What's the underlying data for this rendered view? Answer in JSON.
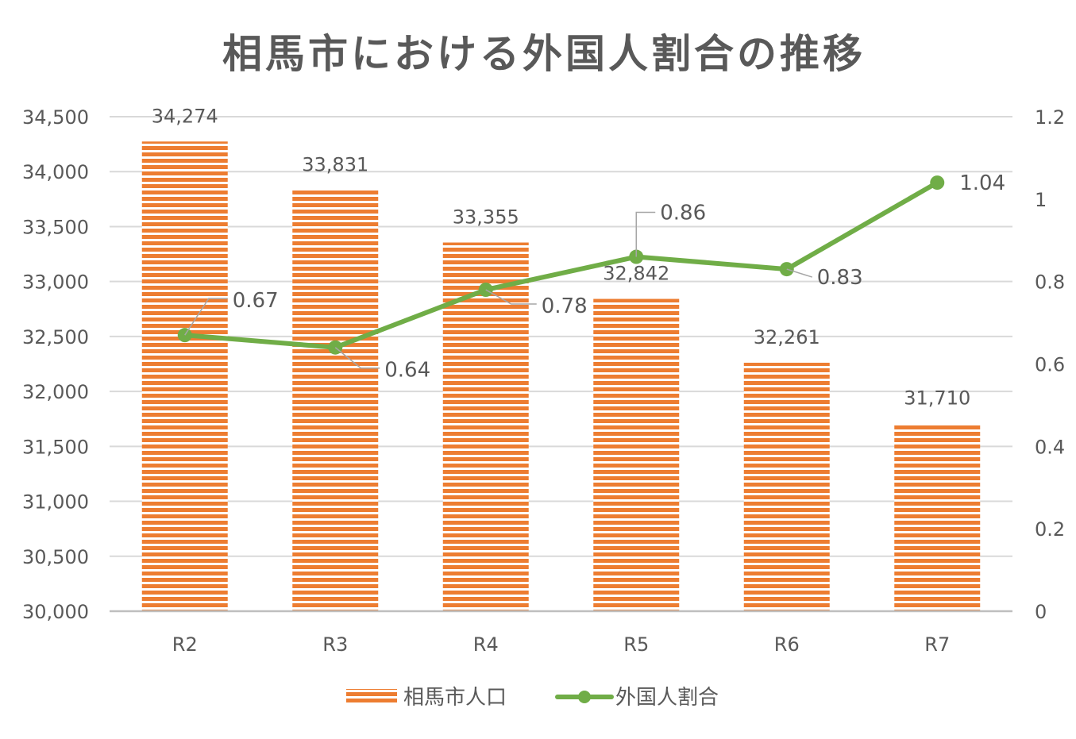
{
  "chart_data": {
    "type": "bar",
    "title": "相馬市における外国人割合の推移",
    "categories": [
      "R2",
      "R3",
      "R4",
      "R5",
      "R6",
      "R7"
    ],
    "series": [
      {
        "name": "相馬市人口",
        "type": "bar",
        "axis": "left",
        "values": [
          34274,
          33831,
          33355,
          32842,
          32261,
          31710
        ],
        "value_labels": [
          "34,274",
          "33,831",
          "33,355",
          "32,842",
          "32,261",
          "31,710"
        ],
        "color": "#ED7D31"
      },
      {
        "name": "外国人割合",
        "type": "line",
        "axis": "right",
        "values": [
          0.67,
          0.64,
          0.78,
          0.86,
          0.83,
          1.04
        ],
        "value_labels": [
          "0.67",
          "0.64",
          "0.78",
          "0.86",
          "0.83",
          "1.04"
        ],
        "color": "#70AD47"
      }
    ],
    "y_left": {
      "min": 30000,
      "max": 34500,
      "tick_values": [
        30000,
        30500,
        31000,
        31500,
        32000,
        32500,
        33000,
        33500,
        34000,
        34500
      ],
      "tick_labels": [
        "30,000",
        "30,500",
        "31,000",
        "31,500",
        "32,000",
        "32,500",
        "33,000",
        "33,500",
        "34,000",
        "34,500"
      ]
    },
    "y_right": {
      "min": 0,
      "max": 1.2,
      "tick_values": [
        0,
        0.2,
        0.4,
        0.6,
        0.8,
        1,
        1.2
      ],
      "tick_labels": [
        "0",
        "0.2",
        "0.4",
        "0.6",
        "0.8",
        "1",
        "1.2"
      ]
    },
    "grid": true,
    "legend": "bottom"
  }
}
